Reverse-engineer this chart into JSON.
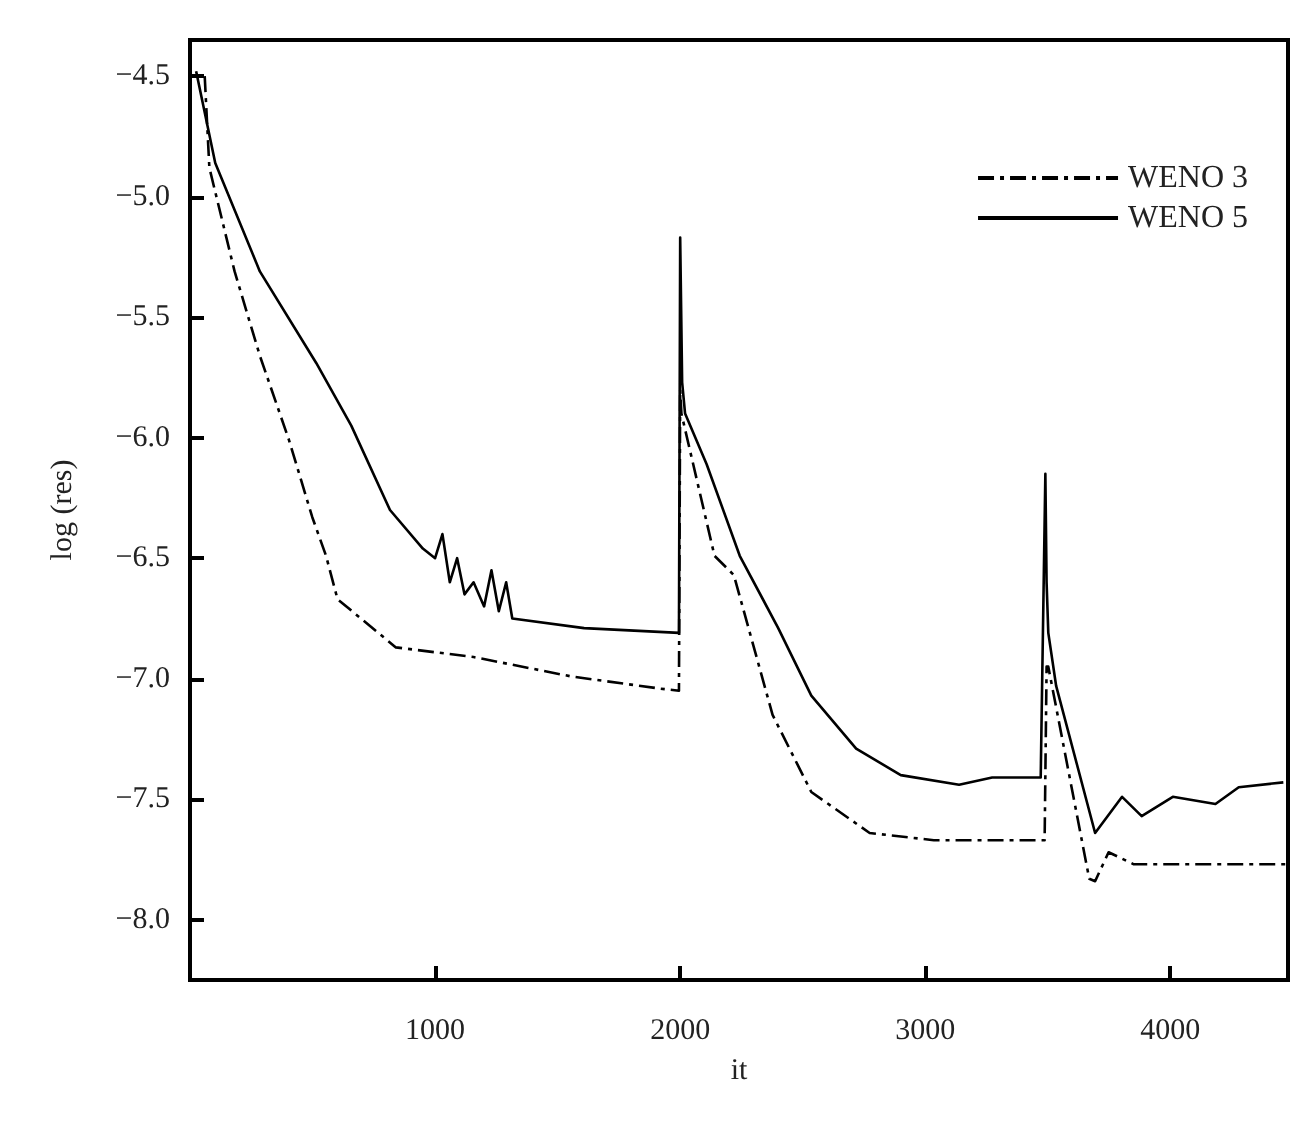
{
  "chart_data": {
    "type": "line",
    "xlabel": "it",
    "ylabel": "log (res)",
    "xlim": [
      0,
      4480
    ],
    "ylim": [
      -8.25,
      -4.35
    ],
    "xticks": [
      1000,
      2000,
      3000,
      4000
    ],
    "yticks": [
      {
        "value": -4.5,
        "label": "−4.5"
      },
      {
        "value": -5,
        "label": "−5.0"
      },
      {
        "value": -5.5,
        "label": "−5.5"
      },
      {
        "value": -6,
        "label": "−6.0"
      },
      {
        "value": -6.5,
        "label": "−6.5"
      },
      {
        "value": -7,
        "label": "−7.0"
      },
      {
        "value": -7.5,
        "label": "−7.5"
      },
      {
        "value": -8,
        "label": "−8.0"
      }
    ],
    "grid": false,
    "legend": "top right",
    "marker": "none",
    "series": [
      {
        "name": "WENO 3",
        "color": "#000000",
        "line_style": "dashed",
        "x": [
          60,
          79,
          182,
          285,
          404,
          499,
          555,
          602,
          840,
          1157,
          1553,
          1910,
          1995,
          2000,
          2005,
          2140,
          2219,
          2377,
          2535,
          2773,
          3035,
          3487,
          3495,
          3502,
          3669,
          3693,
          3748,
          3851,
          4480
        ],
        "values": [
          -4.5,
          -4.88,
          -5.31,
          -5.66,
          -6.01,
          -6.33,
          -6.49,
          -6.67,
          -6.87,
          -6.91,
          -6.99,
          -7.04,
          -7.05,
          -5.8,
          -5.9,
          -6.49,
          -6.57,
          -7.15,
          -7.47,
          -7.64,
          -7.67,
          -7.67,
          -6.95,
          -6.95,
          -7.83,
          -7.84,
          -7.72,
          -7.77,
          -7.77
        ]
      },
      {
        "name": "WENO 5",
        "color": "#000000",
        "line_style": "solid",
        "x": [
          25,
          103,
          285,
          515,
          658,
          816,
          950,
          1000,
          1030,
          1060,
          1090,
          1120,
          1157,
          1200,
          1230,
          1260,
          1290,
          1315,
          1608,
          1995,
          2000,
          2008,
          2020,
          2108,
          2243,
          2400,
          2535,
          2718,
          2900,
          3138,
          3273,
          3471,
          3490,
          3495,
          3502,
          3534,
          3693,
          3803,
          3883,
          4010,
          4184,
          4279,
          4461
        ],
        "values": [
          -4.48,
          -4.86,
          -5.31,
          -5.69,
          -5.95,
          -6.3,
          -6.46,
          -6.5,
          -6.4,
          -6.6,
          -6.5,
          -6.65,
          -6.6,
          -6.7,
          -6.55,
          -6.72,
          -6.6,
          -6.75,
          -6.79,
          -6.81,
          -5.17,
          -5.77,
          -5.9,
          -6.11,
          -6.49,
          -6.79,
          -7.07,
          -7.29,
          -7.4,
          -7.44,
          -7.41,
          -7.41,
          -6.15,
          -6.6,
          -6.81,
          -7.03,
          -7.64,
          -7.49,
          -7.57,
          -7.49,
          -7.52,
          -7.45,
          -7.43
        ]
      }
    ]
  }
}
